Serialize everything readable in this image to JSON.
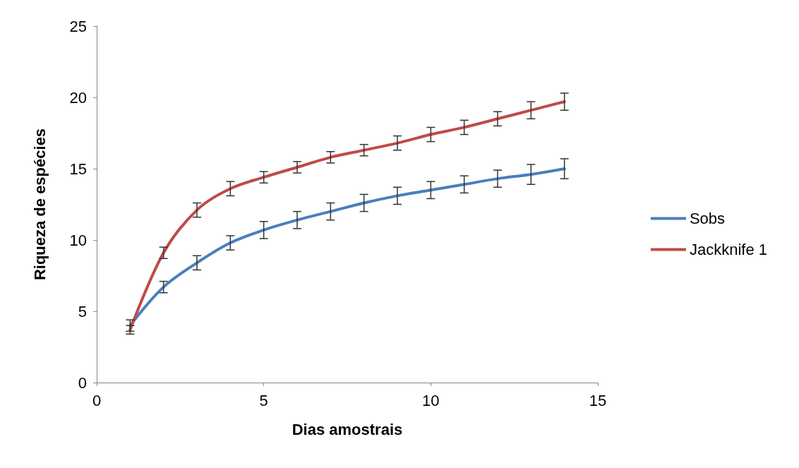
{
  "chart_data": {
    "type": "line",
    "xlabel": "Dias amostrais",
    "ylabel": "Riqueza de espécies",
    "x": [
      1,
      2,
      3,
      4,
      5,
      6,
      7,
      8,
      9,
      10,
      11,
      12,
      13,
      14
    ],
    "series": [
      {
        "name": "Sobs",
        "color": "#4a7ebb",
        "values": [
          4.0,
          6.7,
          8.4,
          9.8,
          10.7,
          11.4,
          12.0,
          12.6,
          13.1,
          13.5,
          13.9,
          14.3,
          14.6,
          15.0
        ],
        "errors": [
          0.4,
          0.4,
          0.5,
          0.5,
          0.6,
          0.6,
          0.6,
          0.6,
          0.6,
          0.6,
          0.6,
          0.6,
          0.7,
          0.7
        ]
      },
      {
        "name": "Jackknife 1",
        "color": "#be4b48",
        "values": [
          3.7,
          9.1,
          12.1,
          13.6,
          14.4,
          15.1,
          15.8,
          16.3,
          16.8,
          17.4,
          17.9,
          18.5,
          19.1,
          19.7
        ],
        "errors": [
          0.3,
          0.4,
          0.5,
          0.5,
          0.4,
          0.4,
          0.4,
          0.4,
          0.5,
          0.5,
          0.5,
          0.5,
          0.6,
          0.6
        ]
      }
    ],
    "xlim": [
      0,
      15
    ],
    "xticks": [
      0,
      5,
      10,
      15
    ],
    "ylim": [
      0,
      25
    ],
    "yticks": [
      0,
      5,
      10,
      15,
      20,
      25
    ],
    "grid": false,
    "legend": "right",
    "marker": "none",
    "line_style": "solid"
  }
}
